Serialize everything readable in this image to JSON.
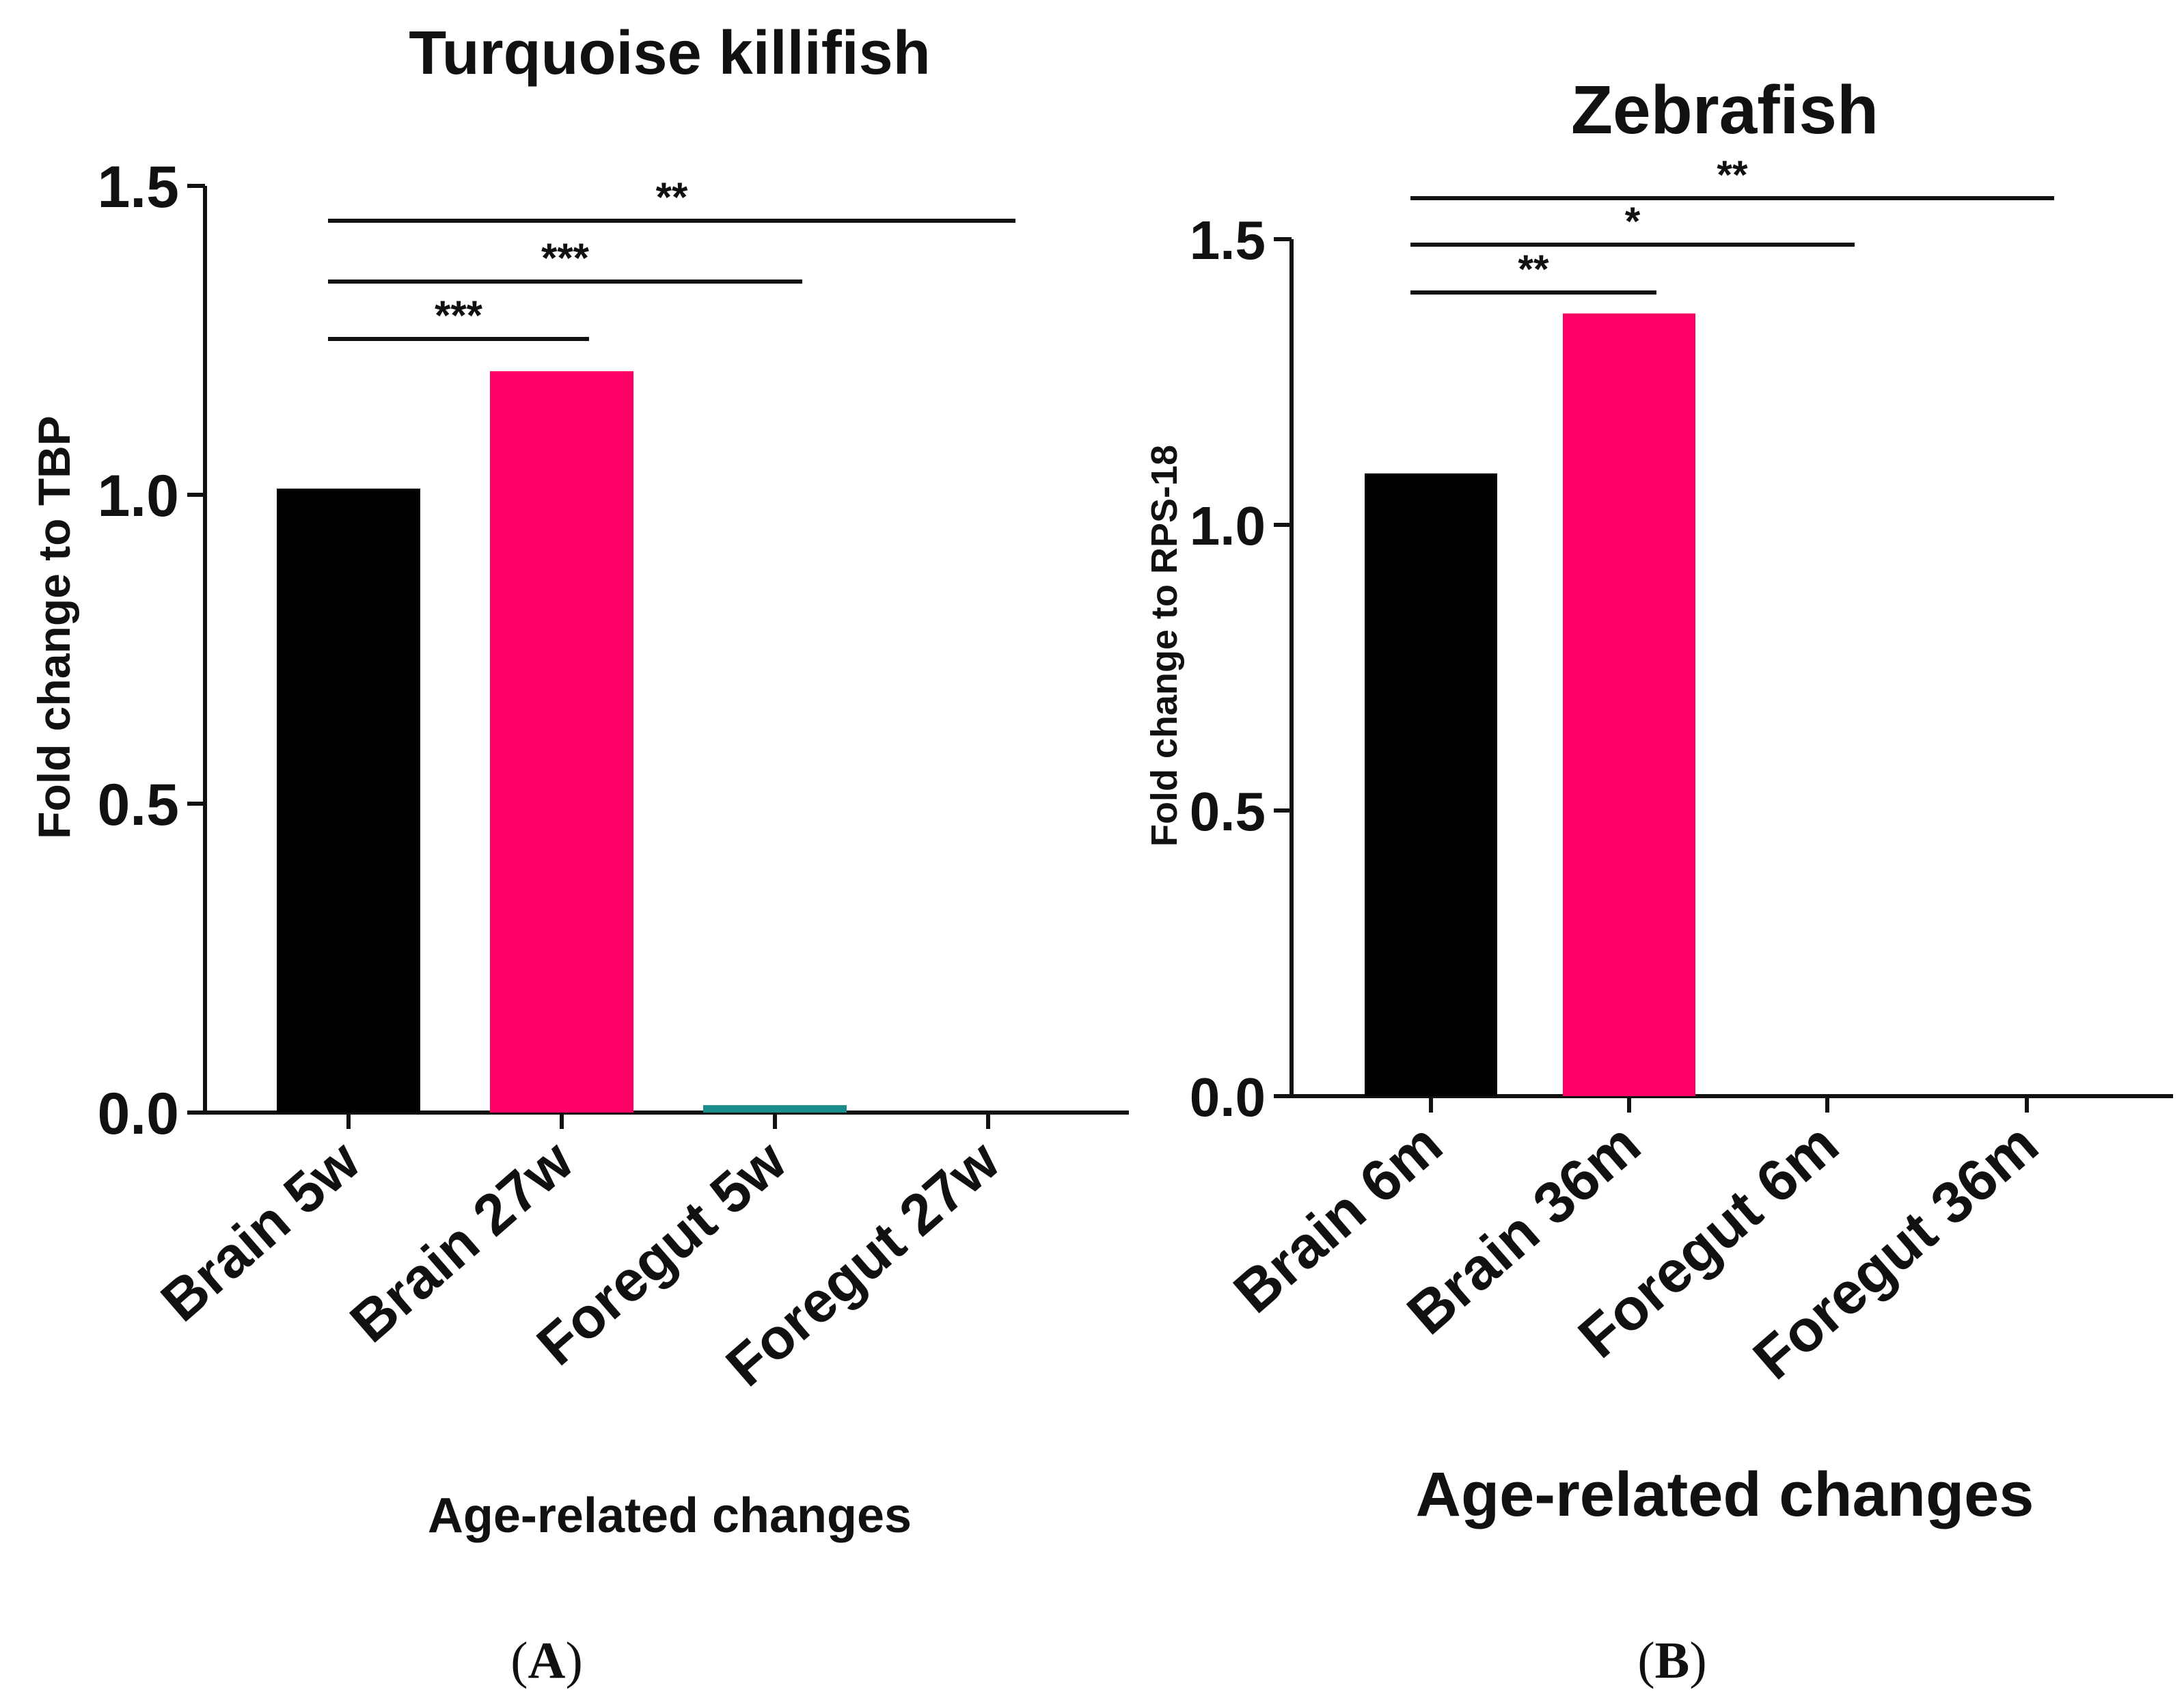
{
  "chart_data": [
    {
      "type": "bar",
      "title": "Turquoise killifish",
      "panel_label": "A",
      "xlabel": "Age-related changes",
      "ylabel": "Fold change to TBP",
      "ylim": [
        0,
        1.5
      ],
      "yticks": [
        "0.0",
        "0.5",
        "1.0",
        "1.5"
      ],
      "categories": [
        "Brain 5w",
        "Brain 27w",
        "Foregut 5w",
        "Foregut 27w"
      ],
      "values": [
        1.01,
        1.2,
        0.012,
        0.0
      ],
      "bar_colors": [
        "#000000",
        "#FF0066",
        "#1A8C8C",
        "#000000"
      ],
      "significance": [
        {
          "from": 0,
          "to": 1,
          "label": "***"
        },
        {
          "from": 0,
          "to": 2,
          "label": "***"
        },
        {
          "from": 0,
          "to": 3,
          "label": "**"
        }
      ]
    },
    {
      "type": "bar",
      "title": "Zebrafish",
      "panel_label": "B",
      "xlabel": "Age-related changes",
      "ylabel": "Fold change to RPS-18",
      "ylim": [
        0,
        1.5
      ],
      "yticks": [
        "0.0",
        "0.5",
        "1.0",
        "1.5"
      ],
      "categories": [
        "Brain 6m",
        "Brain 36m",
        "Foregut 6m",
        "Foregut 36m"
      ],
      "values": [
        1.09,
        1.37,
        0.0,
        0.0
      ],
      "bar_colors": [
        "#000000",
        "#FF0066",
        "#000000",
        "#000000"
      ],
      "significance": [
        {
          "from": 0,
          "to": 1,
          "label": "**"
        },
        {
          "from": 0,
          "to": 2,
          "label": "*"
        },
        {
          "from": 0,
          "to": 3,
          "label": "**"
        }
      ]
    }
  ]
}
